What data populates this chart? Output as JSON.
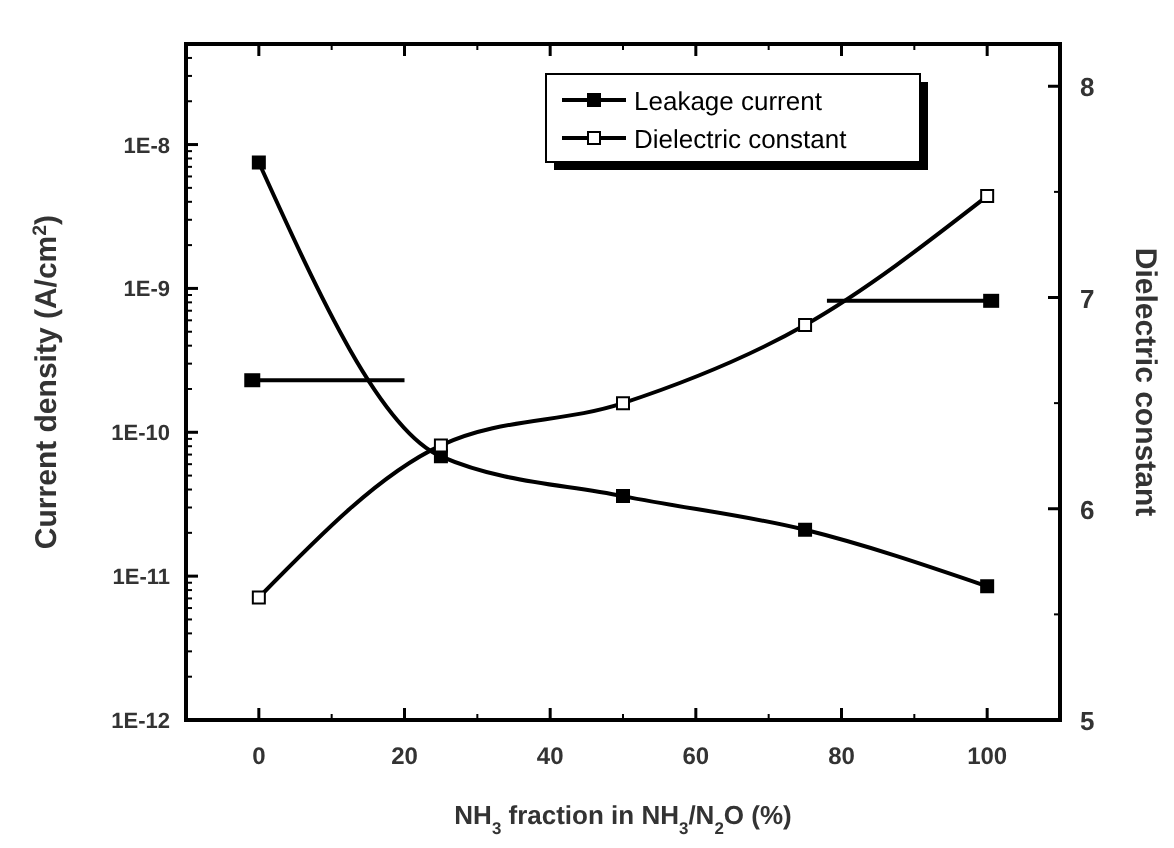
{
  "chart_data": {
    "type": "line",
    "xlabel": "NH$_{3}$ fraction in NH$_{3}$/N$_{2}$O (%)",
    "ylabel": "Current density (A/cm$^{2}$)",
    "y2label": "Dielectric constant",
    "x": [
      0,
      25,
      50,
      75,
      100
    ],
    "series": [
      {
        "name": "Leakage current",
        "color": "#000000",
        "values": [
          7.5e-09,
          6.8e-11,
          3.6e-11,
          2.1e-11,
          8.5e-12
        ]
      },
      {
        "name": "Dielectric constant",
        "color": "#000000",
        "axis": "y2",
        "values": [
          5.58,
          6.3,
          6.5,
          6.87,
          7.48
        ]
      }
    ],
    "xlim": [
      -10,
      110
    ],
    "xticks": [
      0,
      20,
      40,
      60,
      80,
      100
    ],
    "ylim": [
      1e-12,
      5e-08
    ],
    "yticks": [
      {
        "value": 1e-12,
        "label": "1E-12"
      },
      {
        "value": 1e-11,
        "label": "1E-11"
      },
      {
        "value": 1e-10,
        "label": "1E-10"
      },
      {
        "value": 1e-09,
        "label": "1E-9"
      },
      {
        "value": 1e-08,
        "label": "1E-8"
      }
    ],
    "y2lim": [
      5,
      8.2
    ],
    "y2ticks": [
      5,
      6,
      7,
      8
    ],
    "log": "y",
    "marker": "square",
    "line_style": "solid",
    "legend": "top right"
  }
}
